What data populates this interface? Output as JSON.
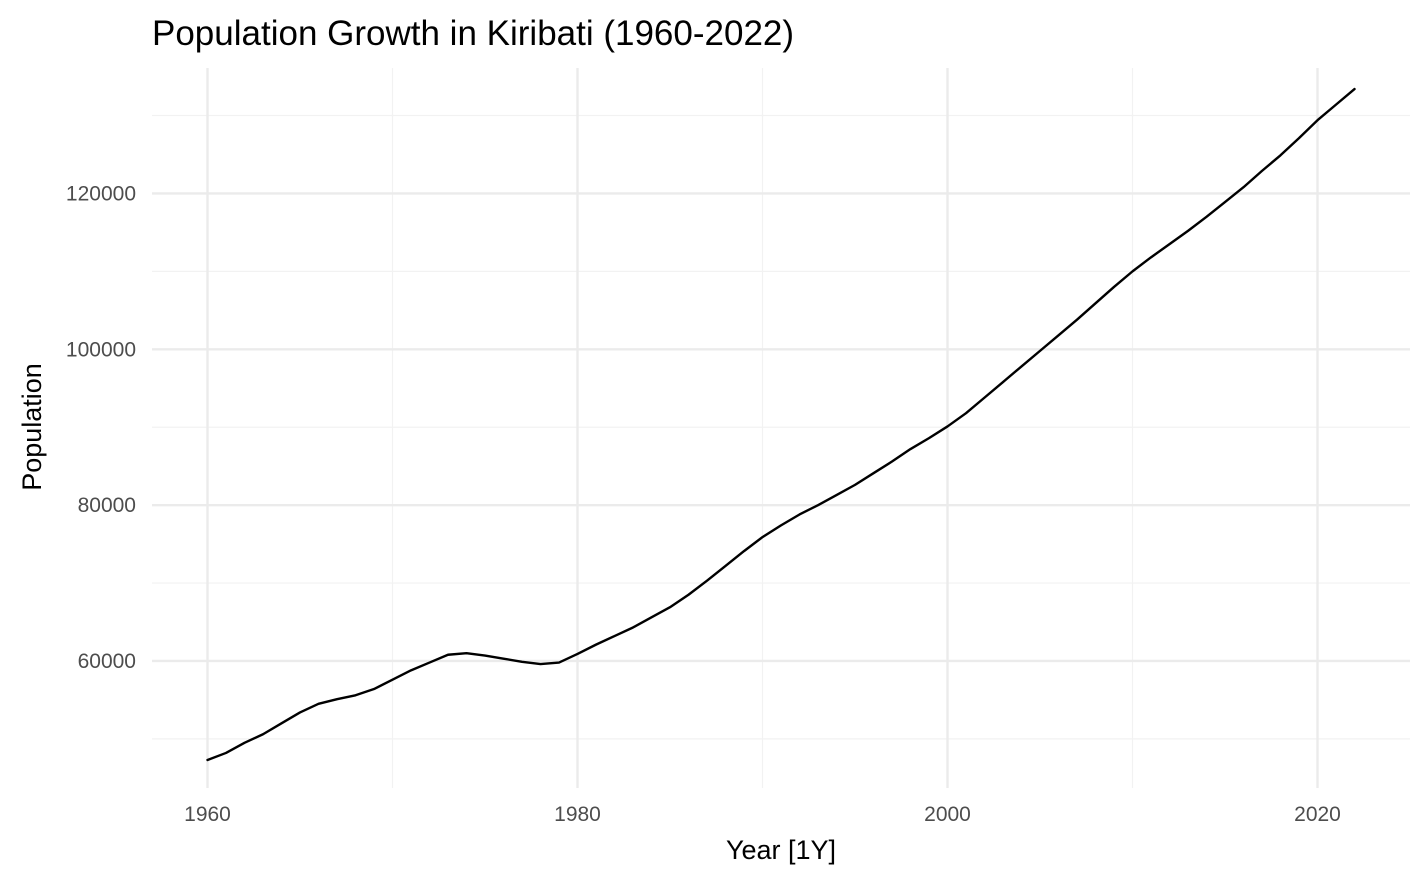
{
  "chart_data": {
    "type": "line",
    "title": "Population Growth in Kiribati (1960-2022)",
    "xlabel": "Year [1Y]",
    "ylabel": "Population",
    "xlim": [
      1957,
      2025
    ],
    "ylim": [
      43700,
      136100
    ],
    "x_ticks": [
      1960,
      1980,
      2000,
      2020
    ],
    "x_minor_ticks": [
      1970,
      1990,
      2010
    ],
    "y_ticks": [
      60000,
      80000,
      100000,
      120000
    ],
    "y_minor_ticks": [
      50000,
      70000,
      90000,
      110000,
      130000
    ],
    "grid": true,
    "legend": "none",
    "series_color": "#000000",
    "x": [
      1960,
      1961,
      1962,
      1963,
      1964,
      1965,
      1966,
      1967,
      1968,
      1969,
      1970,
      1971,
      1972,
      1973,
      1974,
      1975,
      1976,
      1977,
      1978,
      1979,
      1980,
      1981,
      1982,
      1983,
      1984,
      1985,
      1986,
      1987,
      1988,
      1989,
      1990,
      1991,
      1992,
      1993,
      1994,
      1995,
      1996,
      1997,
      1998,
      1999,
      2000,
      2001,
      2002,
      2003,
      2004,
      2005,
      2006,
      2007,
      2008,
      2009,
      2010,
      2011,
      2012,
      2013,
      2014,
      2015,
      2016,
      2017,
      2018,
      2019,
      2020,
      2021,
      2022
    ],
    "series": [
      {
        "values": [
          47300,
          48200,
          49500,
          50600,
          52000,
          53400,
          54500,
          55100,
          55600,
          56400,
          57600,
          58800,
          59800,
          60800,
          61000,
          60700,
          60300,
          59900,
          59600,
          59800,
          60900,
          62100,
          63200,
          64300,
          65600,
          66900,
          68500,
          70300,
          72200,
          74100,
          75900,
          77400,
          78800,
          80000,
          81300,
          82600,
          84100,
          85600,
          87200,
          88600,
          90100,
          91800,
          93800,
          95800,
          97800,
          99800,
          101800,
          103800,
          105900,
          108000,
          110000,
          111800,
          113500,
          115200,
          117000,
          118900,
          120800,
          122900,
          124900,
          127100,
          129400,
          131400,
          133400
        ]
      }
    ]
  }
}
